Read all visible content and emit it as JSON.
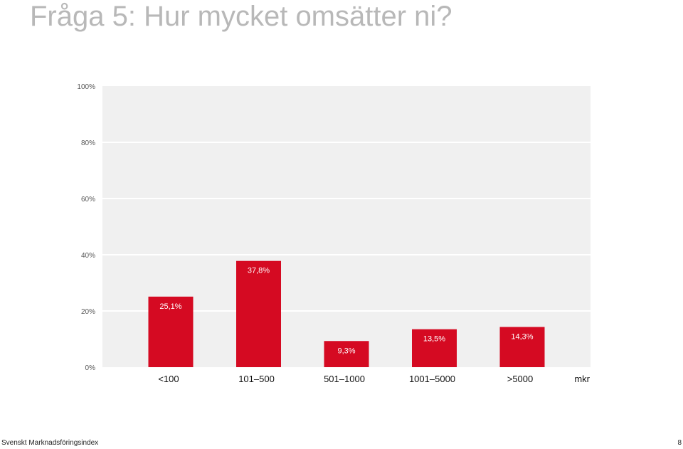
{
  "page": {
    "title": "Fråga 5: Hur mycket omsätter ni?",
    "footer_left": "Svenskt Marknadsföringsindex",
    "footer_right": "8"
  },
  "chart_data": {
    "type": "bar",
    "categories": [
      "<100",
      "101–500",
      "501–1000",
      "1001–5000",
      ">5000"
    ],
    "values": [
      25.1,
      37.8,
      9.3,
      13.5,
      14.3
    ],
    "value_labels": [
      "25,1%",
      "37,8%",
      "9,3%",
      "13,5%",
      "14,3%"
    ],
    "yticks": [
      "0%",
      "20%",
      "40%",
      "60%",
      "80%",
      "100%"
    ],
    "ylim": [
      0,
      100
    ],
    "x_unit_label": "mkr",
    "grid": true,
    "colors": {
      "bar": "#d50a22",
      "plot_bg": "#f0f0f0",
      "grid": "#ffffff",
      "axis_text": "#555555",
      "bar_label": "#ffffff"
    }
  }
}
